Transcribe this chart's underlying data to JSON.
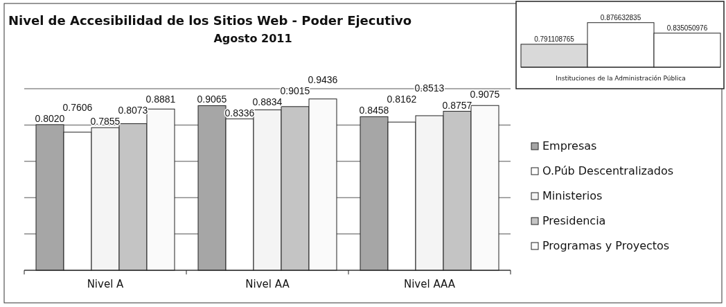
{
  "chart_data": [
    {
      "type": "bar",
      "title": "Nivel de Accesibilidad de los Sitios Web - Poder Ejecutivo",
      "subtitle": "Agosto 2011",
      "categories": [
        "Nivel A",
        "Nivel AA",
        "Nivel AAA"
      ],
      "series": [
        {
          "name": "Empresas",
          "color": "#a6a6a6",
          "values": [
            0.802,
            0.9065,
            0.8458
          ],
          "value_labels": [
            "0.8020",
            "0.9065",
            "0.8458"
          ]
        },
        {
          "name": "O.Púb Descentralizados",
          "color": "#ffffff",
          "values": [
            0.7606,
            0.8336,
            0.8162
          ],
          "value_labels": [
            "0.7606",
            "0.8336",
            "0.8162"
          ]
        },
        {
          "name": "Ministerios",
          "color": "#f4f4f4",
          "values": [
            0.7855,
            0.8834,
            0.8513
          ],
          "value_labels": [
            "0.7855",
            "0.8834",
            "0.8513"
          ]
        },
        {
          "name": "Presidencia",
          "color": "#c4c4c4",
          "values": [
            0.8073,
            0.9015,
            0.8757
          ],
          "value_labels": [
            "0.8073",
            "0.9015",
            "0.8757"
          ]
        },
        {
          "name": "Programas y Proyectos",
          "color": "#fafafa",
          "values": [
            0.8881,
            0.9436,
            0.9075
          ],
          "value_labels": [
            "0.8881",
            "0.9436",
            "0.9075"
          ]
        }
      ],
      "ylim": [
        0,
        1
      ],
      "yticks": [
        {
          "value": 0,
          "label": null
        },
        {
          "value": 0.2,
          "label": null
        },
        {
          "value": 0.4,
          "label": null
        },
        {
          "value": 0.6,
          "label": null
        },
        {
          "value": 0.8,
          "label": null
        },
        {
          "value": 1,
          "label": null
        }
      ],
      "tick_labels": "x",
      "grid": "y",
      "legend": "right"
    },
    {
      "type": "bar",
      "categories": [
        null,
        null,
        null
      ],
      "xlabel": "Instituciones de la Administración Pública",
      "values": [
        0.791108765,
        0.876632835,
        0.835050976
      ],
      "colors": [
        "#d9d9d9",
        "#ffffff",
        "#ffffff"
      ],
      "ylim": [
        0.7,
        0.95
      ],
      "tick_labels": "x",
      "data_labels": true
    }
  ]
}
